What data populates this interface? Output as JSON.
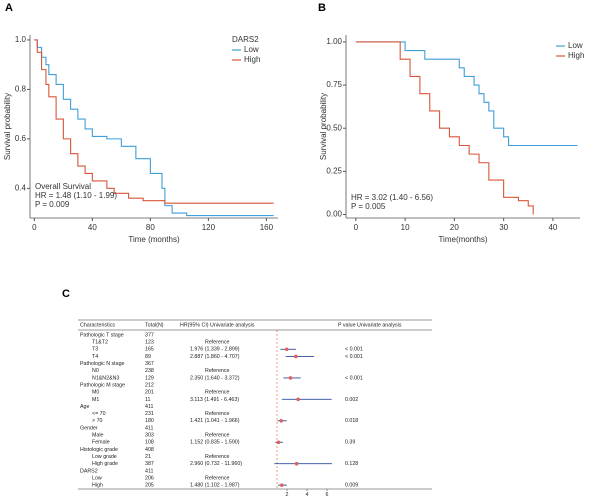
{
  "chart_data": [
    {
      "type": "line",
      "step": true,
      "panel_label": "A",
      "xlabel": "Time (months)",
      "ylabel": "Survival probability",
      "legend_title": "DARS2",
      "annotations": [
        "Overall Survival",
        "HR = 1.48 (1.10 - 1.99)",
        "P = 0.009"
      ],
      "xlim": [
        -3,
        168
      ],
      "ylim": [
        0.28,
        1.02
      ],
      "xticks": [
        0,
        40,
        80,
        120,
        160
      ],
      "yticks": [
        {
          "value": 0.4,
          "label": "0.4"
        },
        {
          "value": 0.6,
          "label": "0.6"
        },
        {
          "value": 0.8,
          "label": "0.8"
        },
        {
          "value": 1,
          "label": "1.0"
        }
      ],
      "series": [
        {
          "name": "Low",
          "color": "#3f9fd6",
          "x": [
            0,
            2,
            5,
            8,
            10,
            15,
            20,
            25,
            30,
            35,
            40,
            50,
            60,
            70,
            80,
            88,
            90,
            95,
            105,
            165
          ],
          "values": [
            1,
            0.97,
            0.93,
            0.9,
            0.86,
            0.82,
            0.76,
            0.72,
            0.68,
            0.64,
            0.61,
            0.6,
            0.57,
            0.52,
            0.46,
            0.4,
            0.33,
            0.3,
            0.29,
            0.29
          ]
        },
        {
          "name": "High",
          "color": "#d9553a",
          "x": [
            0,
            2,
            5,
            8,
            10,
            15,
            20,
            25,
            30,
            35,
            40,
            50,
            55,
            65,
            75,
            90,
            165
          ],
          "values": [
            1,
            0.95,
            0.88,
            0.82,
            0.77,
            0.68,
            0.6,
            0.54,
            0.49,
            0.46,
            0.43,
            0.4,
            0.38,
            0.36,
            0.35,
            0.34,
            0.34
          ]
        }
      ]
    },
    {
      "type": "line",
      "step": true,
      "panel_label": "B",
      "xlabel": "Time(months)",
      "ylabel": "Survival probability",
      "annotations": [
        "HR = 3.02 (1.40 - 6.56)",
        "P = 0.005"
      ],
      "xlim": [
        -2,
        45.5
      ],
      "ylim": [
        -0.02,
        1.04
      ],
      "xticks": [
        0,
        10,
        20,
        30,
        40
      ],
      "yticks": [
        {
          "value": 0,
          "label": "0.00"
        },
        {
          "value": 0.25,
          "label": "0.25"
        },
        {
          "value": 0.5,
          "label": "0.50"
        },
        {
          "value": 0.75,
          "label": "0.75"
        },
        {
          "value": 1,
          "label": "1.00"
        }
      ],
      "series": [
        {
          "name": "Low",
          "color": "#3f9fd6",
          "x": [
            0,
            9,
            10,
            14,
            20,
            21,
            22,
            24,
            25,
            26,
            27,
            28,
            30,
            31,
            45
          ],
          "values": [
            1,
            1,
            0.95,
            0.9,
            0.9,
            0.85,
            0.8,
            0.75,
            0.7,
            0.65,
            0.6,
            0.5,
            0.45,
            0.4,
            0.4
          ]
        },
        {
          "name": "High",
          "color": "#d9553a",
          "x": [
            0,
            8,
            9,
            11,
            13,
            15,
            17,
            19,
            21,
            23,
            25,
            27,
            30,
            33,
            35,
            36
          ],
          "values": [
            1,
            1,
            0.9,
            0.8,
            0.7,
            0.6,
            0.5,
            0.45,
            0.4,
            0.35,
            0.3,
            0.2,
            0.1,
            0.08,
            0.05,
            0
          ]
        }
      ]
    }
  ],
  "table": {
    "panel_label": "C",
    "columns": [
      "Characteristics",
      "Total(N)",
      "HR(95% CI) Univariate analysis",
      "P value Univariate analysis"
    ],
    "forest": {
      "xlim": [
        0.7,
        6.3
      ],
      "xticks": [
        2,
        4,
        6
      ],
      "reference": 1
    },
    "rows": [
      {
        "name": "Pathologic T stage",
        "total": 377
      },
      {
        "name": "T1&T2",
        "total": 123,
        "hr_text": "Reference"
      },
      {
        "name": "T3",
        "total": 165,
        "hr_text": "1.976 (1.339 - 2.899)",
        "hr": 1.976,
        "lower": 1.339,
        "upper": 2.899,
        "p": "< 0.001"
      },
      {
        "name": "T4",
        "total": 89,
        "hr_text": "2.887 (1.860 - 4.707)",
        "hr": 2.887,
        "lower": 1.86,
        "upper": 4.707,
        "p": "< 0.001"
      },
      {
        "name": "Pathologic N stage",
        "total": 367
      },
      {
        "name": "N0",
        "total": 238,
        "hr_text": "Reference"
      },
      {
        "name": "N1&N2&N3",
        "total": 129,
        "hr_text": "2.350 (1.640 - 3.372)",
        "hr": 2.35,
        "lower": 1.64,
        "upper": 3.372,
        "p": "< 0.001"
      },
      {
        "name": "Pathologic M stage",
        "total": 212
      },
      {
        "name": "M0",
        "total": 201,
        "hr_text": "Reference"
      },
      {
        "name": "M1",
        "total": 11,
        "hr_text": "3.113 (1.491 - 6.463)",
        "hr": 3.113,
        "lower": 1.491,
        "upper": 6.463,
        "p": "0.002"
      },
      {
        "name": "Age",
        "total": 411
      },
      {
        "name": "<= 70",
        "total": 231,
        "hr_text": "Reference"
      },
      {
        "name": "> 70",
        "total": 180,
        "hr_text": "1.421 (1.041 - 1.966)",
        "hr": 1.421,
        "lower": 1.041,
        "upper": 1.966,
        "p": "0.018"
      },
      {
        "name": "Gender",
        "total": 411
      },
      {
        "name": "Male",
        "total": 303,
        "hr_text": "Reference"
      },
      {
        "name": "Female",
        "total": 108,
        "hr_text": "1.152 (0.835 - 1.590)",
        "hr": 1.152,
        "lower": 0.835,
        "upper": 1.59,
        "p": "0.39"
      },
      {
        "name": "Histologic grade",
        "total": 408
      },
      {
        "name": "Low grade",
        "total": 21,
        "hr_text": "Reference"
      },
      {
        "name": "High grade",
        "total": 387,
        "hr_text": "2.960 (0.732 - 11.960)",
        "hr": 2.96,
        "lower": 0.732,
        "upper": 11.96,
        "p": "0.128"
      },
      {
        "name": "DARS2",
        "total": 411
      },
      {
        "name": "Low",
        "total": 206,
        "hr_text": "Reference"
      },
      {
        "name": "High",
        "total": 205,
        "hr_text": "1.480 (1.102 - 1.987)",
        "hr": 1.48,
        "lower": 1.102,
        "upper": 1.987,
        "p": "0.009"
      }
    ]
  }
}
